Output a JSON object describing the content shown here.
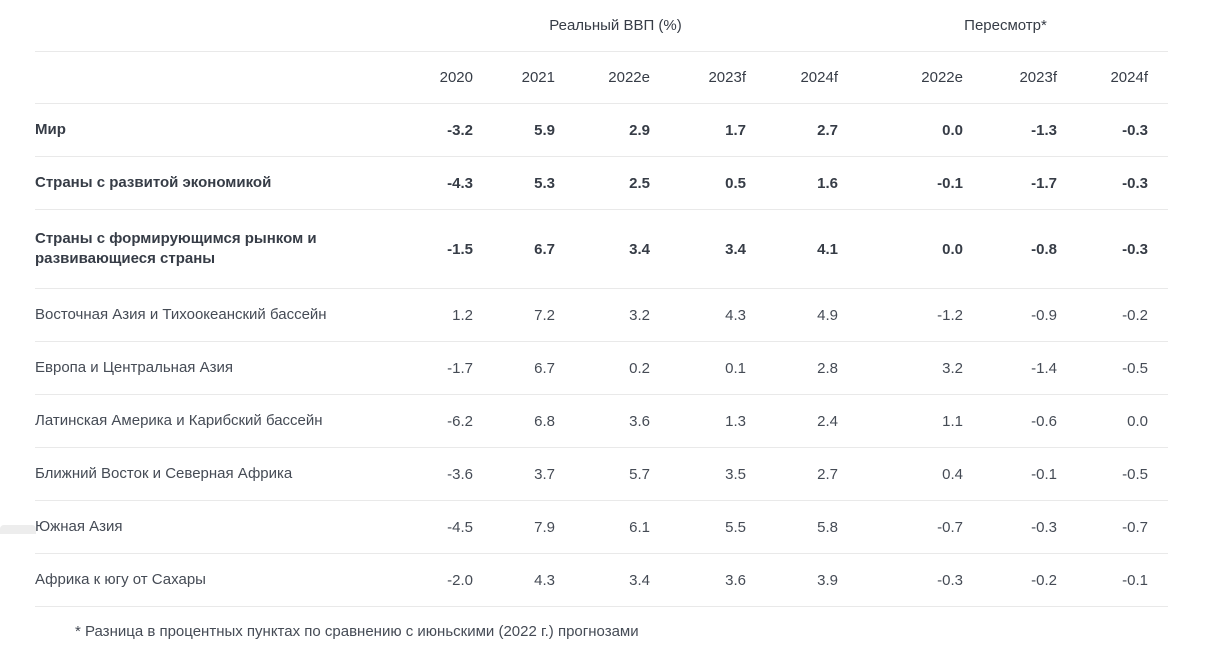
{
  "page": {
    "background": "#ffffff",
    "text_color": "#454b55",
    "bold_text_color": "#363c46",
    "divider_color": "#e9e9e9"
  },
  "table": {
    "group_headers": [
      {
        "label": "Реальный ВВП (%)",
        "colspan": 5
      },
      {
        "label": "Пересмотр*",
        "colspan": 3
      }
    ],
    "columns": [
      "2020",
      "2021",
      "2022e",
      "2023f",
      "2024f",
      "2022e",
      "2023f",
      "2024f"
    ],
    "rows": [
      {
        "label": "Мир",
        "bold": true,
        "values": [
          "-3.2",
          "5.9",
          "2.9",
          "1.7",
          "2.7",
          "0.0",
          "-1.3",
          "-0.3"
        ]
      },
      {
        "label": "Страны с развитой экономикой",
        "bold": true,
        "values": [
          "-4.3",
          "5.3",
          "2.5",
          "0.5",
          "1.6",
          "-0.1",
          "-1.7",
          "-0.3"
        ]
      },
      {
        "label": "Страны с формирующимся рынком и развивающиеся страны",
        "bold": true,
        "values": [
          "-1.5",
          "6.7",
          "3.4",
          "3.4",
          "4.1",
          "0.0",
          "-0.8",
          "-0.3"
        ]
      },
      {
        "label": "Восточная Азия и Тихоокеанский бассейн",
        "bold": false,
        "values": [
          "1.2",
          "7.2",
          "3.2",
          "4.3",
          "4.9",
          "-1.2",
          "-0.9",
          "-0.2"
        ]
      },
      {
        "label": "Европа и Центральная Азия",
        "bold": false,
        "values": [
          "-1.7",
          "6.7",
          "0.2",
          "0.1",
          "2.8",
          "3.2",
          "-1.4",
          "-0.5"
        ]
      },
      {
        "label": "Латинская Америка и Карибский бассейн",
        "bold": false,
        "values": [
          "-6.2",
          "6.8",
          "3.6",
          "1.3",
          "2.4",
          "1.1",
          "-0.6",
          "0.0"
        ]
      },
      {
        "label": "Ближний Восток и Северная Африка",
        "bold": false,
        "values": [
          "-3.6",
          "3.7",
          "5.7",
          "3.5",
          "2.7",
          "0.4",
          "-0.1",
          "-0.5"
        ]
      },
      {
        "label": "Южная Азия",
        "bold": false,
        "values": [
          "-4.5",
          "7.9",
          "6.1",
          "5.5",
          "5.8",
          "-0.7",
          "-0.3",
          "-0.7"
        ]
      },
      {
        "label": "Африка к югу от Сахары",
        "bold": false,
        "values": [
          "-2.0",
          "4.3",
          "3.4",
          "3.6",
          "3.9",
          "-0.3",
          "-0.2",
          "-0.1"
        ]
      }
    ],
    "footnote": "* Разница в процентных пунктах по сравнению с июньскими (2022 г.) прогнозами"
  },
  "chart_data": {
    "type": "table",
    "title": "Реальный ВВП (%)",
    "column_groups": [
      {
        "title": "Реальный ВВП (%)",
        "columns": [
          "2020",
          "2021",
          "2022e",
          "2023f",
          "2024f"
        ]
      },
      {
        "title": "Пересмотр*",
        "columns": [
          "2022e",
          "2023f",
          "2024f"
        ]
      }
    ],
    "categories": [
      "Мир",
      "Страны с развитой экономикой",
      "Страны с формирующимся рынком и развивающиеся страны",
      "Восточная Азия и Тихоокеанский бассейн",
      "Европа и Центральная Азия",
      "Латинская Америка и Карибский бассейн",
      "Ближний Восток и Северная Африка",
      "Южная Азия",
      "Африка к югу от Сахары"
    ],
    "series": [
      {
        "name": "2020",
        "values": [
          -3.2,
          -4.3,
          -1.5,
          1.2,
          -1.7,
          -6.2,
          -3.6,
          -4.5,
          -2.0
        ]
      },
      {
        "name": "2021",
        "values": [
          5.9,
          5.3,
          6.7,
          7.2,
          6.7,
          6.8,
          3.7,
          7.9,
          4.3
        ]
      },
      {
        "name": "2022e",
        "values": [
          2.9,
          2.5,
          3.4,
          3.2,
          0.2,
          3.6,
          5.7,
          6.1,
          3.4
        ]
      },
      {
        "name": "2023f",
        "values": [
          1.7,
          0.5,
          3.4,
          4.3,
          0.1,
          1.3,
          3.5,
          5.5,
          3.6
        ]
      },
      {
        "name": "2024f",
        "values": [
          2.7,
          1.6,
          4.1,
          4.9,
          2.8,
          2.4,
          2.7,
          5.8,
          3.9
        ]
      },
      {
        "name": "Пересмотр 2022e",
        "values": [
          0.0,
          -0.1,
          0.0,
          -1.2,
          3.2,
          1.1,
          0.4,
          -0.7,
          -0.3
        ]
      },
      {
        "name": "Пересмотр 2023f",
        "values": [
          -1.3,
          -1.7,
          -0.8,
          -0.9,
          -1.4,
          -0.6,
          -0.1,
          -0.3,
          -0.2
        ]
      },
      {
        "name": "Пересмотр 2024f",
        "values": [
          -0.3,
          -0.3,
          -0.3,
          -0.2,
          -0.5,
          0.0,
          -0.5,
          -0.7,
          -0.1
        ]
      }
    ],
    "footnote": "* Разница в процентных пунктах по сравнению с июньскими (2022 г.) прогнозами"
  }
}
